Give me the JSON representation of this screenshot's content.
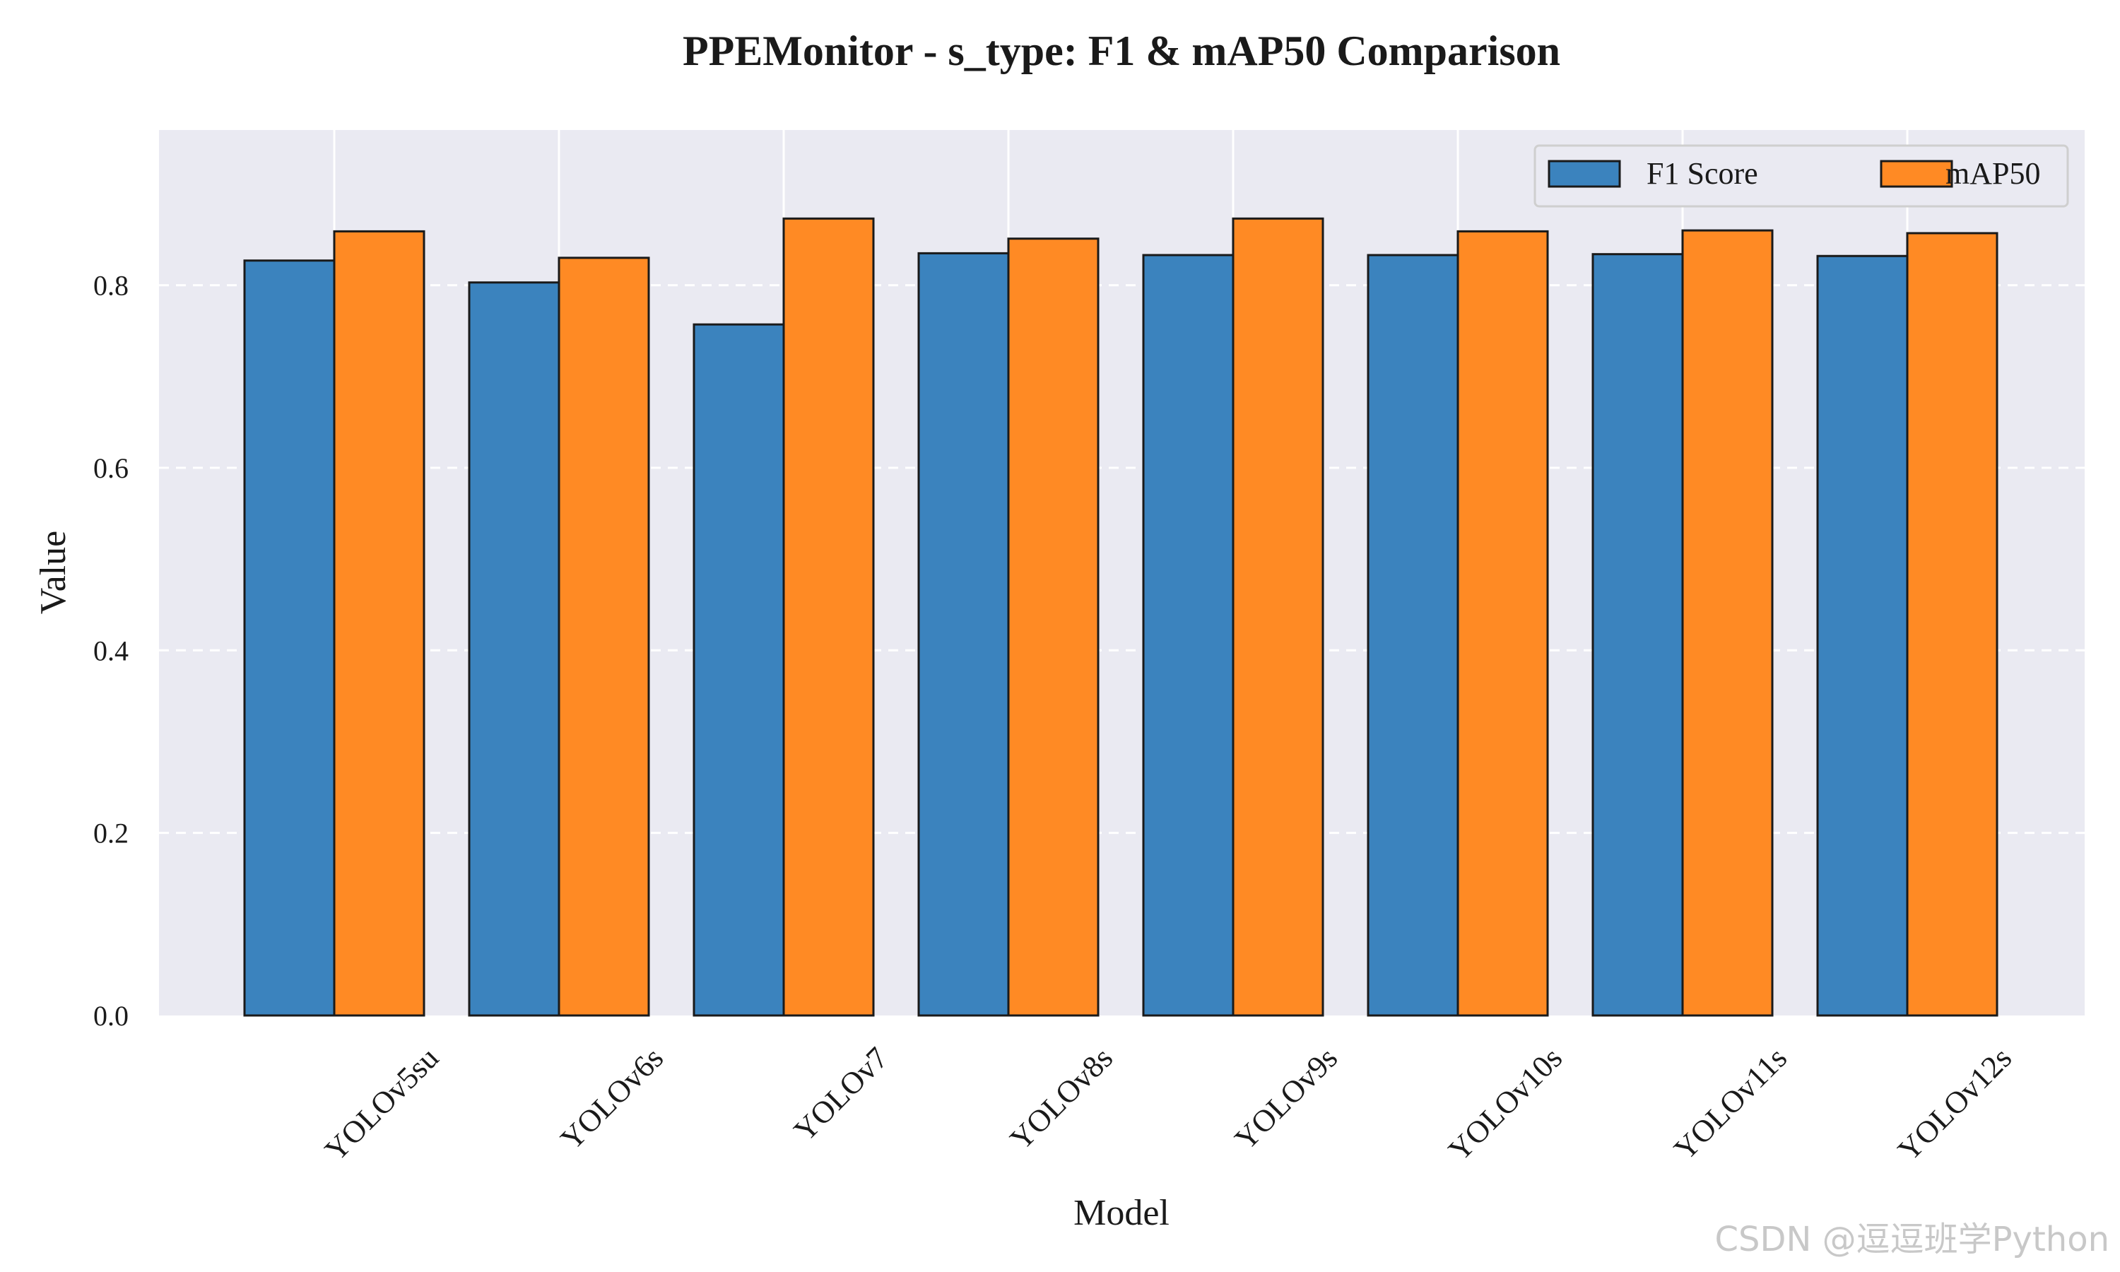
{
  "chart_data": {
    "type": "bar",
    "title": "PPEMonitor - s_type: F1 & mAP50 Comparison",
    "xlabel": "Model",
    "ylabel": "Value",
    "categories": [
      "YOLOv5su",
      "YOLOv6s",
      "YOLOv7",
      "YOLOv8s",
      "YOLOv9s",
      "YOLOv10s",
      "YOLOv11s",
      "YOLOv12s"
    ],
    "series": [
      {
        "name": "F1 Score",
        "color": "#3b83be",
        "values": [
          0.827,
          0.803,
          0.757,
          0.835,
          0.833,
          0.833,
          0.834,
          0.832
        ]
      },
      {
        "name": "mAP50",
        "color": "#ff8a24",
        "values": [
          0.859,
          0.83,
          0.873,
          0.851,
          0.873,
          0.859,
          0.86,
          0.857
        ]
      }
    ],
    "ylim": [
      0,
      0.97
    ],
    "yticks": [
      "0.0",
      "0.2",
      "0.4",
      "0.6",
      "0.8"
    ],
    "grid": true,
    "legend_position": "top-right",
    "background": "#eaeaf2"
  },
  "watermark": "CSDN @逗逗班学Python"
}
